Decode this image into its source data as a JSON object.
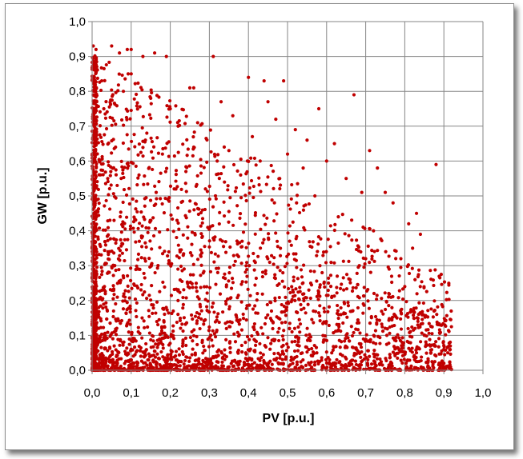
{
  "chart_data": {
    "type": "scatter",
    "xlabel": "PV [p.u.]",
    "ylabel": "GW [p.u.]",
    "xlim": [
      0,
      1
    ],
    "ylim": [
      0,
      1
    ],
    "xticks": [
      0,
      0.1,
      0.2,
      0.3,
      0.4,
      0.5,
      0.6,
      0.7,
      0.8,
      0.9,
      1.0
    ],
    "yticks": [
      0,
      0.1,
      0.2,
      0.3,
      0.4,
      0.5,
      0.6,
      0.7,
      0.8,
      0.9,
      1.0
    ],
    "xtick_labels": [
      "0,0",
      "0,1",
      "0,2",
      "0,3",
      "0,4",
      "0,5",
      "0,6",
      "0,7",
      "0,8",
      "0,9",
      "1,0"
    ],
    "ytick_labels": [
      "0,0",
      "0,1",
      "0,2",
      "0,3",
      "0,4",
      "0,5",
      "0,6",
      "0,7",
      "0,8",
      "0,9",
      "1,0"
    ],
    "grid": true,
    "legend": "none",
    "marker_color": "#c00000",
    "points": [
      [
        0.003,
        0.93
      ],
      [
        0.01,
        0.92
      ],
      [
        0.05,
        0.93
      ],
      [
        0.07,
        0.91
      ],
      [
        0.09,
        0.92
      ],
      [
        0.1,
        0.92
      ],
      [
        0.13,
        0.9
      ],
      [
        0.16,
        0.91
      ],
      [
        0.19,
        0.9
      ],
      [
        0.31,
        0.9
      ],
      [
        0.25,
        0.81
      ],
      [
        0.26,
        0.81
      ],
      [
        0.4,
        0.84
      ],
      [
        0.44,
        0.83
      ],
      [
        0.49,
        0.83
      ],
      [
        0.58,
        0.75
      ],
      [
        0.67,
        0.79
      ],
      [
        0.71,
        0.63
      ],
      [
        0.88,
        0.59
      ],
      [
        0.75,
        0.51
      ],
      [
        0.81,
        0.42
      ],
      [
        0.83,
        0.45
      ],
      [
        0.84,
        0.39
      ],
      [
        0.82,
        0.35
      ],
      [
        0.85,
        0.1
      ],
      [
        0.89,
        0.13
      ],
      [
        0.9,
        0.06
      ],
      [
        0.91,
        0.05
      ],
      [
        0.9,
        0.02
      ],
      [
        0.86,
        0.01
      ],
      [
        0.1,
        0.85
      ],
      [
        0.08,
        0.8
      ],
      [
        0.03,
        0.75
      ],
      [
        0.15,
        0.78
      ],
      [
        0.2,
        0.75
      ],
      [
        0.22,
        0.7
      ],
      [
        0.27,
        0.71
      ],
      [
        0.33,
        0.77
      ],
      [
        0.36,
        0.73
      ],
      [
        0.45,
        0.77
      ],
      [
        0.47,
        0.72
      ],
      [
        0.52,
        0.69
      ],
      [
        0.55,
        0.66
      ],
      [
        0.6,
        0.6
      ],
      [
        0.62,
        0.65
      ],
      [
        0.65,
        0.55
      ],
      [
        0.69,
        0.51
      ],
      [
        0.73,
        0.58
      ],
      [
        0.77,
        0.48
      ],
      [
        0.79,
        0.32
      ],
      [
        0.76,
        0.29
      ],
      [
        0.8,
        0.24
      ],
      [
        0.78,
        0.15
      ],
      [
        0.81,
        0.08
      ],
      [
        0.83,
        0.05
      ],
      [
        0.72,
        0.4
      ],
      [
        0.7,
        0.32
      ],
      [
        0.66,
        0.26
      ],
      [
        0.63,
        0.44
      ],
      [
        0.57,
        0.5
      ],
      [
        0.54,
        0.58
      ],
      [
        0.5,
        0.62
      ],
      [
        0.48,
        0.55
      ],
      [
        0.43,
        0.6
      ],
      [
        0.41,
        0.67
      ],
      [
        0.38,
        0.56
      ],
      [
        0.35,
        0.63
      ],
      [
        0.32,
        0.6
      ],
      [
        0.29,
        0.52
      ],
      [
        0.26,
        0.64
      ],
      [
        0.24,
        0.57
      ],
      [
        0.21,
        0.52
      ],
      [
        0.18,
        0.62
      ],
      [
        0.14,
        0.68
      ],
      [
        0.12,
        0.56
      ],
      [
        0.06,
        0.64
      ],
      [
        0.04,
        0.55
      ],
      [
        0.02,
        0.6
      ]
    ]
  }
}
